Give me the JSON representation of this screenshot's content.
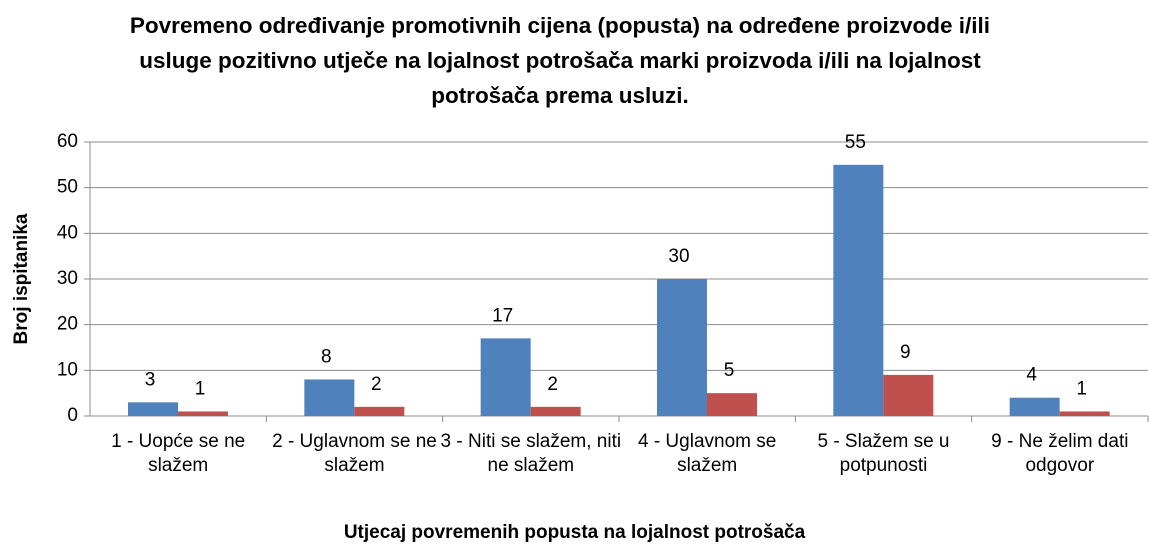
{
  "chart_data": {
    "type": "bar",
    "title": "Povremeno određivanje promotivnih cijena (popusta) na određene proizvode i/ili usluge pozitivno utječe na lojalnost potrošača marki proizvoda i/ili na lojalnost potrošača prema usluzi.",
    "x_label": "Utjecaj povremenih popusta na lojalnost potrošača",
    "y_label": "Broj ispitanika",
    "categories": [
      "1  - Uopće se ne slažem",
      "2 - Uglavnom se ne slažem",
      "3 - Niti se slažem, niti ne slažem",
      "4 - Uglavnom se slažem",
      "5 - Slažem se u potpunosti",
      "9 - Ne želim dati odgovor"
    ],
    "series": [
      {
        "color": "#4f81bd",
        "values": [
          3,
          8,
          17,
          30,
          55,
          4
        ]
      },
      {
        "color": "#c0504d",
        "values": [
          1,
          2,
          2,
          5,
          9,
          1
        ]
      }
    ],
    "ylim": [
      0,
      60
    ],
    "yticks": [
      0,
      10,
      20,
      30,
      40,
      50,
      60
    ],
    "grid": true
  }
}
